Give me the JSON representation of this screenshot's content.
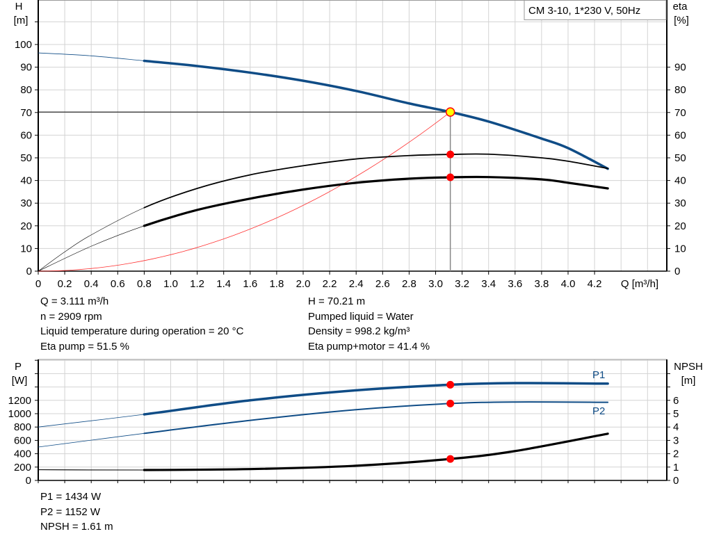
{
  "title_box": "CM 3-10, 1*230 V, 50Hz",
  "colors": {
    "pump_curve": "#0f4c86",
    "efficiency": "#000000",
    "system_curve": "#ff3030",
    "duty_point": "#ff0000",
    "duty_point_main": "#ffff00",
    "grid": "#d3d3d3"
  },
  "chart_data": [
    {
      "type": "line",
      "xlabel": "Q [m³/h]",
      "ylabel_left": [
        "H",
        "[m]"
      ],
      "ylabel_right": [
        "eta",
        "[%]"
      ],
      "xlim": [
        0,
        4.74
      ],
      "ylim": [
        0,
        119.6
      ],
      "x_ticks": [
        "0",
        "0.2",
        "0.4",
        "0.6",
        "0.8",
        "1.0",
        "1.2",
        "1.4",
        "1.6",
        "1.8",
        "2.0",
        "2.2",
        "2.4",
        "2.6",
        "2.8",
        "3.0",
        "3.2",
        "3.4",
        "3.6",
        "3.8",
        "4.0",
        "4.2"
      ],
      "y_ticks_left": [
        "0",
        "10",
        "20",
        "30",
        "40",
        "50",
        "60",
        "70",
        "80",
        "90",
        "100"
      ],
      "y_ticks_right": [
        "0",
        "10",
        "20",
        "30",
        "40",
        "50",
        "60",
        "70",
        "80",
        "90"
      ],
      "grid": true,
      "series": [
        {
          "key": "H",
          "axis": "left",
          "x": [
            0,
            0.4,
            0.8,
            1.2,
            1.6,
            2.0,
            2.4,
            2.8,
            3.111,
            3.4,
            3.8,
            4.0,
            4.3
          ],
          "y": [
            96.3,
            95,
            92.8,
            90.5,
            87.6,
            84,
            79.5,
            74,
            70.21,
            66,
            58.5,
            54.3,
            45.2
          ]
        },
        {
          "key": "eta_pump",
          "axis": "right",
          "x": [
            0,
            0.2,
            0.4,
            0.8,
            1.2,
            1.6,
            2.0,
            2.4,
            2.8,
            3.111,
            3.4,
            3.8,
            4.0,
            4.3
          ],
          "y": [
            0,
            8.5,
            16,
            28,
            36.5,
            42.5,
            46.5,
            49.5,
            51,
            51.5,
            51.6,
            50,
            48.5,
            45.3
          ]
        },
        {
          "key": "eta_total",
          "axis": "right",
          "x": [
            0,
            0.4,
            0.8,
            1.2,
            1.6,
            2.0,
            2.4,
            2.8,
            3.111,
            3.4,
            3.8,
            4.0,
            4.3
          ],
          "y": [
            0,
            11,
            20,
            27,
            32,
            36,
            39,
            40.8,
            41.4,
            41.5,
            40.5,
            39,
            36.5
          ]
        },
        {
          "key": "system",
          "axis": "left",
          "x": [
            0,
            3.111
          ],
          "y": [
            0,
            70.21
          ],
          "shape": "quadratic"
        }
      ],
      "duty_point": {
        "Q": 3.111,
        "H": 70.21,
        "eta_pump": 51.5,
        "eta_total": 41.4
      }
    },
    {
      "type": "line",
      "ylabel_left": [
        "P",
        "[W]"
      ],
      "ylabel_right": [
        "NPSH",
        "[m]"
      ],
      "xlim": [
        0,
        4.74
      ],
      "ylim": [
        0,
        1810
      ],
      "y_ticks_left": [
        "0",
        "200",
        "400",
        "600",
        "800",
        "1000",
        "1200"
      ],
      "y_ticks_right": [
        "0",
        "1",
        "2",
        "3",
        "4",
        "5",
        "6"
      ],
      "grid": true,
      "series": [
        {
          "key": "P1",
          "name": "P1",
          "axis": "left",
          "x": [
            0,
            0.8,
            1.6,
            2.4,
            3.111,
            3.6,
            4.3
          ],
          "y": [
            800,
            990,
            1200,
            1350,
            1434,
            1458,
            1450
          ]
        },
        {
          "key": "P2",
          "name": "P2",
          "axis": "left",
          "x": [
            0,
            0.8,
            1.6,
            2.4,
            3.111,
            3.6,
            4.3
          ],
          "y": [
            500,
            705,
            900,
            1060,
            1152,
            1175,
            1170
          ]
        },
        {
          "key": "NPSH",
          "axis": "right",
          "x": [
            0,
            0.8,
            1.6,
            2.4,
            3.111,
            3.6,
            4.3
          ],
          "y": [
            0.8,
            0.78,
            0.85,
            1.1,
            1.61,
            2.2,
            3.5
          ]
        }
      ],
      "duty_point": {
        "Q": 3.111,
        "P1": 1434,
        "P2": 1152,
        "NPSH": 1.61
      }
    }
  ],
  "info_top_left": [
    "Q = 3.111 m³/h",
    "n = 2909 rpm",
    "Liquid temperature during operation = 20 °C",
    "Eta pump = 51.5 %"
  ],
  "info_top_right": [
    "H = 70.21 m",
    "Pumped liquid = Water",
    "Density = 998.2 kg/m³",
    "Eta pump+motor = 41.4 %"
  ],
  "info_bottom": [
    "P1 = 1434 W",
    "P2 = 1152 W",
    "NPSH = 1.61 m"
  ]
}
